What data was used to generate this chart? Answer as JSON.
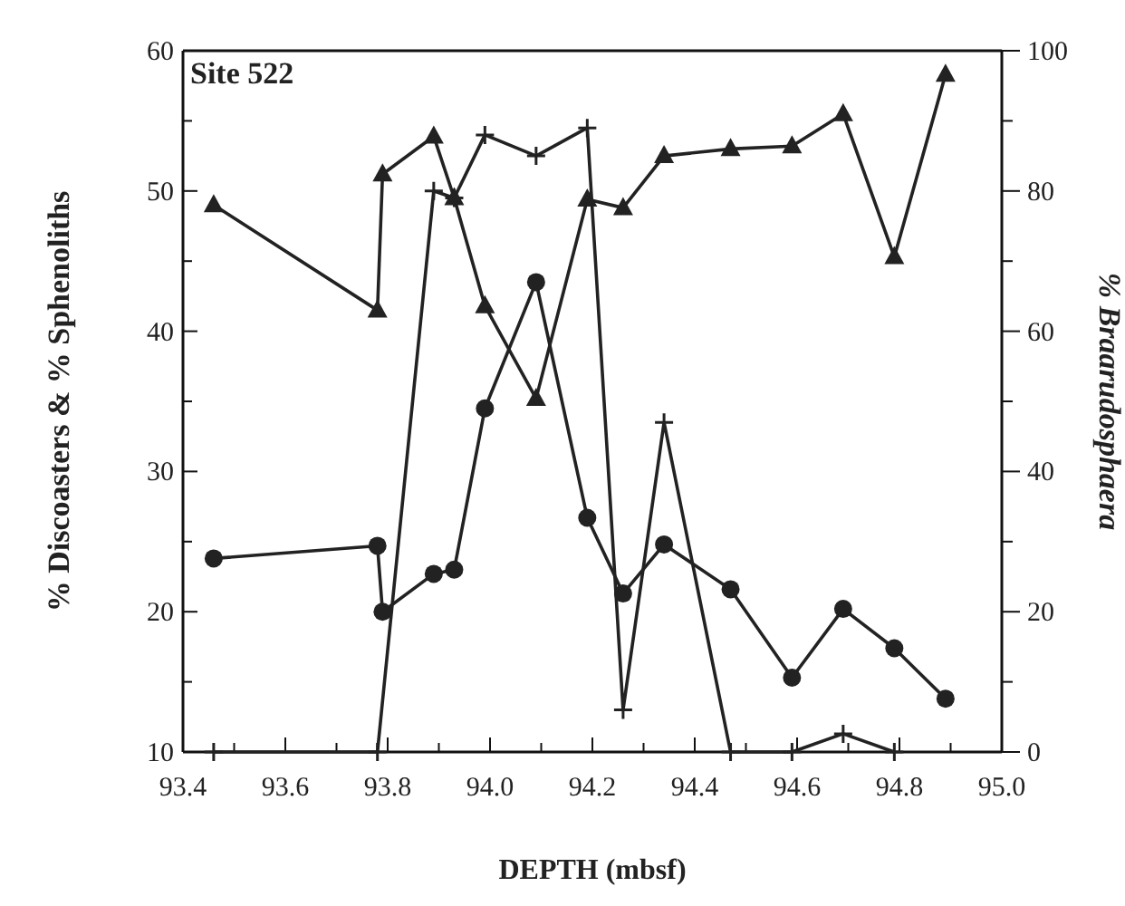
{
  "chart_data": {
    "type": "line",
    "xlabel": "DEPTH (mbsf)",
    "ylabel": "% Discoasters & % Sphenoliths",
    "y2label": "% Braarudosphaera",
    "annotations": [
      "Site 522"
    ],
    "xlim": [
      93.4,
      95.0
    ],
    "xticks": [
      93.4,
      {
        "value": 93.5,
        "label": null
      },
      93.6,
      {
        "value": 93.7,
        "label": null
      },
      93.8,
      {
        "value": 93.9,
        "label": null
      },
      {
        "value": 94.0,
        "label": "94.0"
      },
      {
        "value": 94.1,
        "label": null
      },
      94.2,
      {
        "value": 94.3,
        "label": null
      },
      94.4,
      {
        "value": 94.5,
        "label": null
      },
      94.6,
      {
        "value": 94.7,
        "label": null
      },
      94.8,
      {
        "value": 94.9,
        "label": null
      },
      {
        "value": 95.0,
        "label": "95.0"
      }
    ],
    "ylim": [
      10,
      60
    ],
    "yticks": [
      10,
      {
        "value": 15,
        "label": null
      },
      20,
      {
        "value": 25,
        "label": null
      },
      30,
      {
        "value": 35,
        "label": null
      },
      40,
      {
        "value": 45,
        "label": null
      },
      50,
      {
        "value": 55,
        "label": null
      },
      60
    ],
    "y2lim": [
      0,
      100
    ],
    "y2ticks": [
      0,
      {
        "value": 10,
        "label": null
      },
      20,
      {
        "value": 30,
        "label": null
      },
      40,
      {
        "value": 50,
        "label": null
      },
      60,
      {
        "value": 70,
        "label": null
      },
      80,
      {
        "value": 90,
        "label": null
      },
      100
    ],
    "grid": false,
    "series": [
      {
        "color": "#222222",
        "marker": "circle",
        "x": [
          93.46,
          93.78,
          93.79,
          93.89,
          93.93,
          93.99,
          94.09,
          94.19,
          94.26,
          94.34,
          94.47,
          94.59,
          94.69,
          94.79,
          94.89
        ],
        "values": [
          23.8,
          24.7,
          20,
          22.7,
          23,
          34.5,
          43.5,
          26.7,
          21.3,
          24.8,
          21.6,
          15.3,
          20.2,
          17.4,
          13.8
        ]
      },
      {
        "color": "#222222",
        "marker": "cross",
        "x": [
          93.46,
          93.78,
          93.89,
          93.93,
          93.99,
          94.09,
          94.19,
          94.26,
          94.34,
          94.47,
          94.59,
          94.69,
          94.79
        ],
        "values": [
          10,
          10,
          50,
          49.5,
          54,
          52.5,
          54.5,
          13,
          33.5,
          10,
          10,
          11.3,
          10
        ]
      },
      {
        "color": "#222222",
        "marker": "triangle",
        "axis": "y2",
        "x": [
          93.46,
          93.78,
          93.79,
          93.89,
          93.93,
          93.99,
          94.09,
          94.19,
          94.26,
          94.34,
          94.47,
          94.59,
          94.69,
          94.79,
          94.89
        ],
        "values": [
          78,
          63,
          82.4,
          87.8,
          79,
          63.6,
          50.4,
          78.8,
          77.6,
          85,
          86,
          86.4,
          91,
          70.6,
          96.6
        ]
      }
    ]
  }
}
